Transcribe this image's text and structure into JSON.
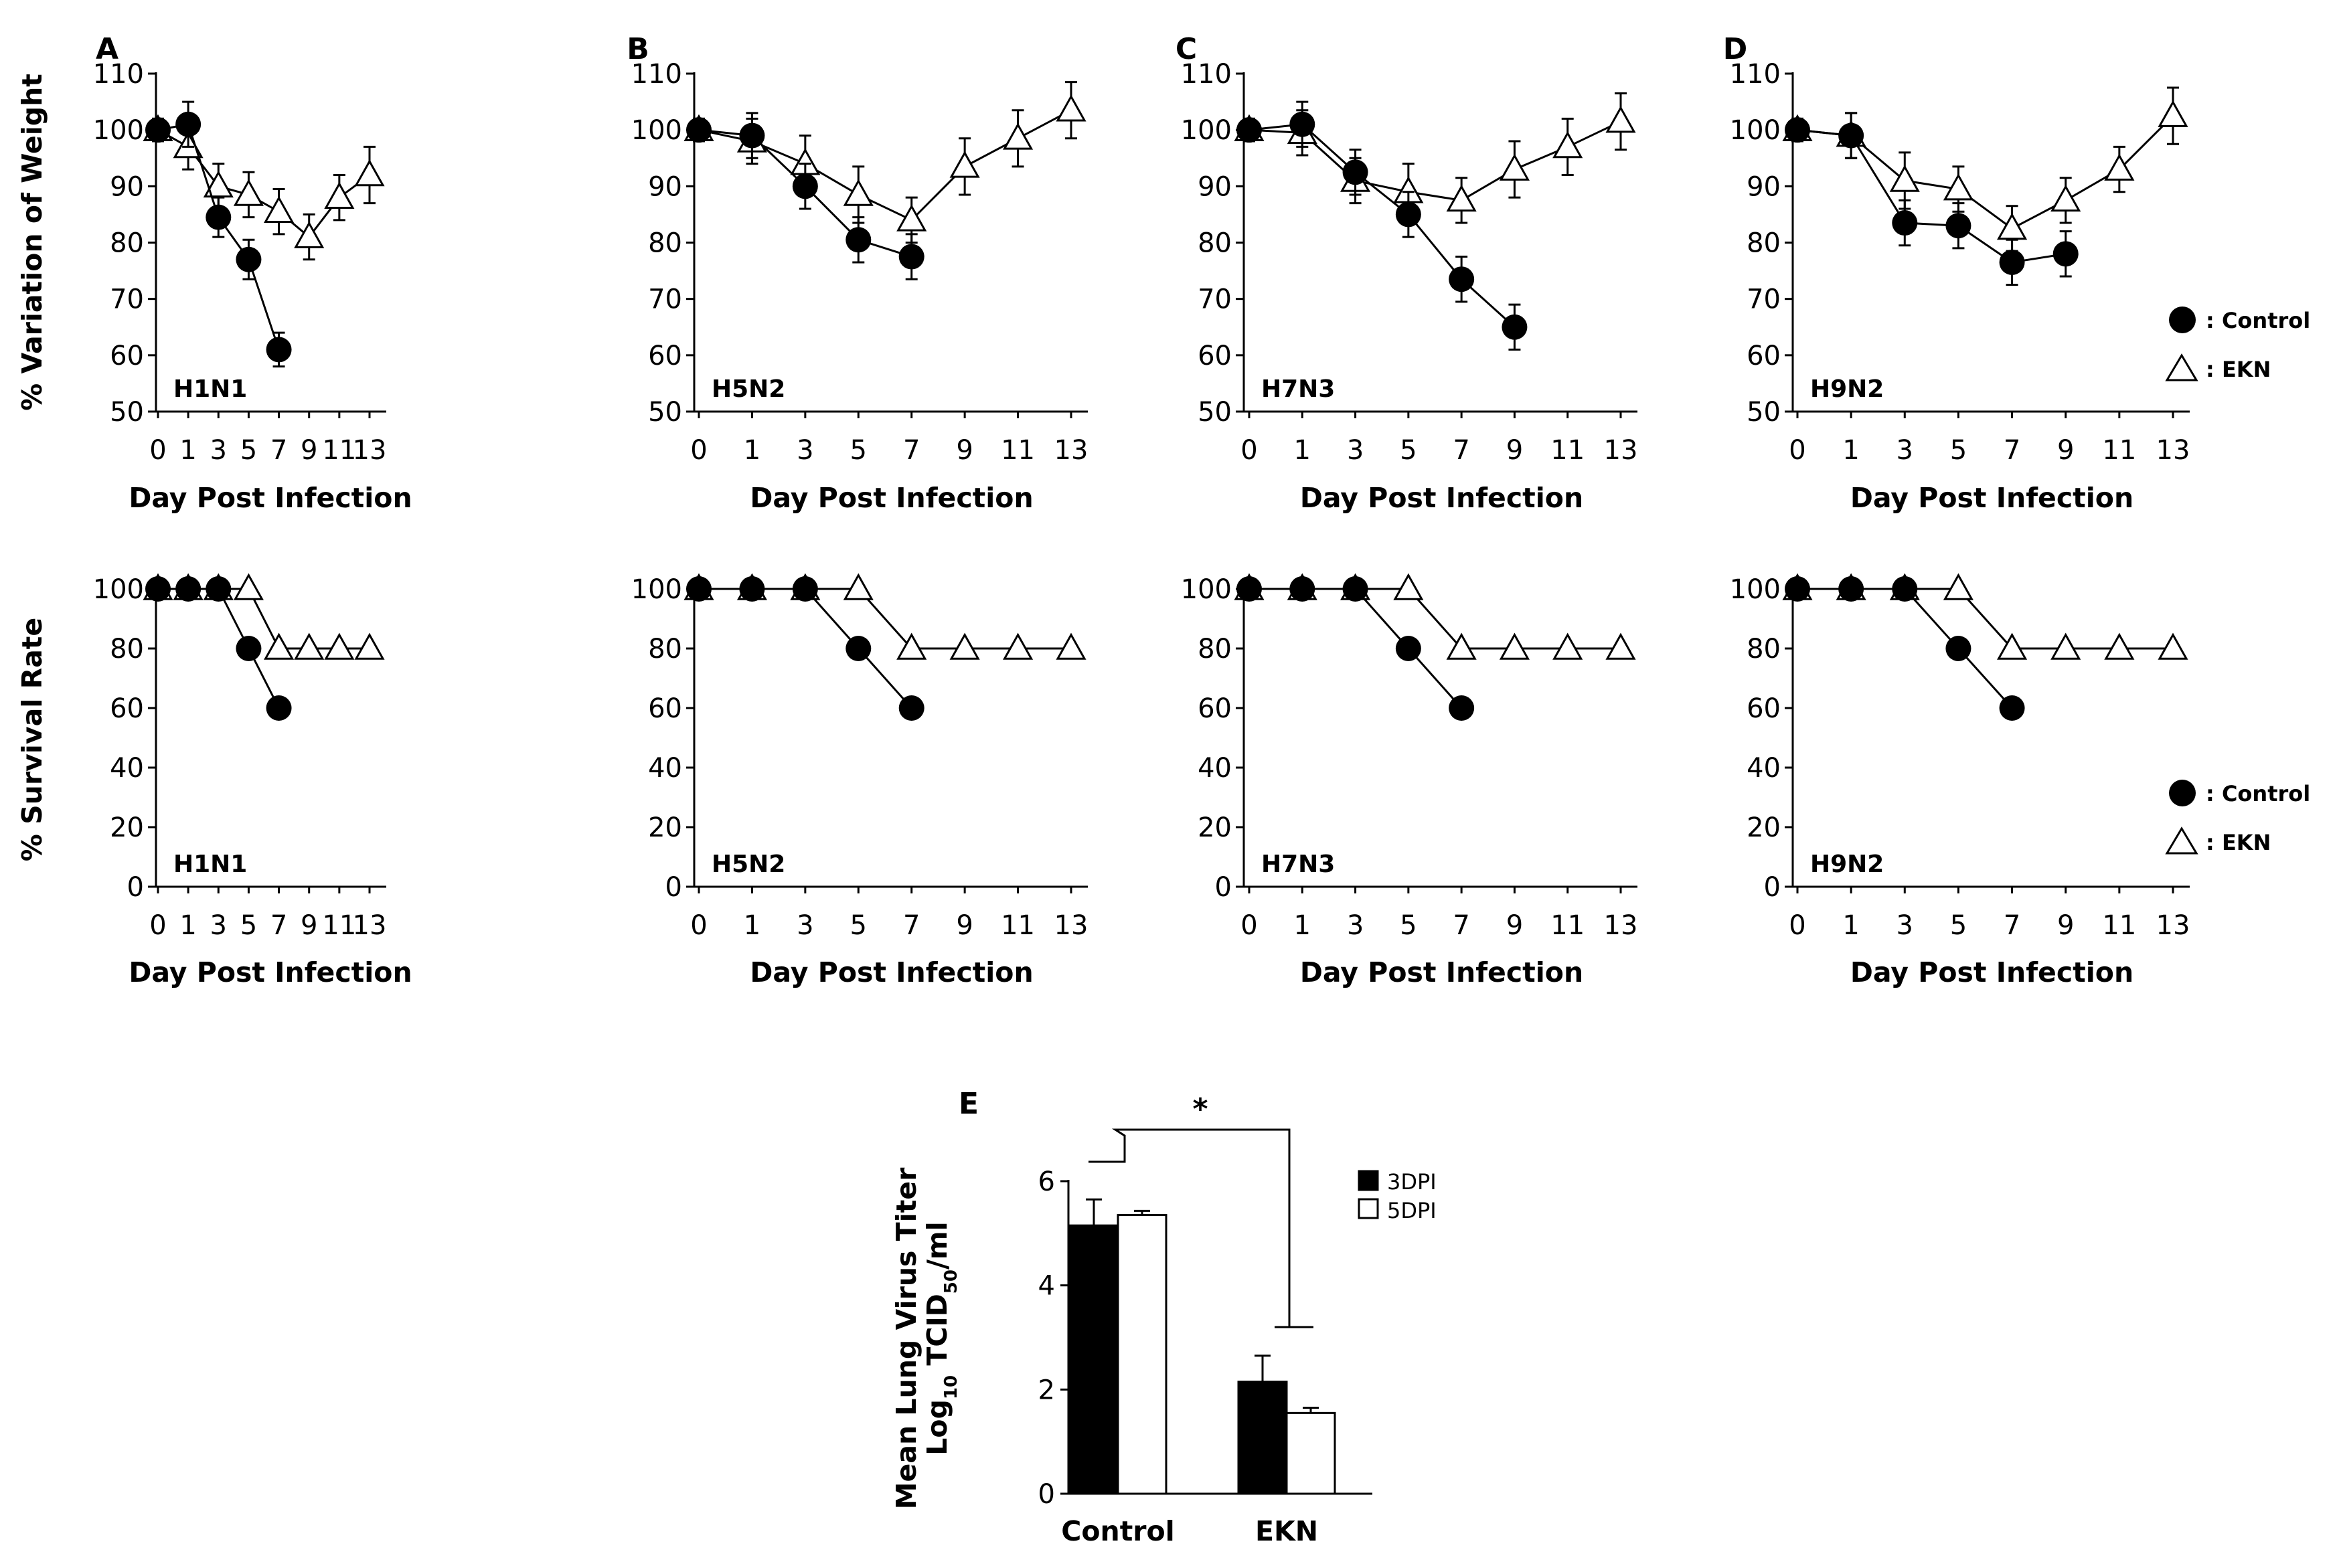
{
  "legend": {
    "control": ": Control",
    "ekn": ": EKN"
  },
  "chart_data": [
    {
      "id": "A",
      "type": "line",
      "panel": "A",
      "strain": "H1N1",
      "xlabel": "Day Post Infection",
      "ylabel": "% Variation of Weight",
      "ylim": [
        50,
        110
      ],
      "yticks": [
        50,
        60,
        70,
        80,
        90,
        100,
        110
      ],
      "xticks": [
        0,
        1,
        3,
        5,
        7,
        9,
        11,
        13
      ],
      "series": [
        {
          "name": "Control",
          "x": [
            0,
            1,
            3,
            5,
            7
          ],
          "y": [
            100,
            101,
            84.5,
            77,
            61
          ],
          "err": [
            2,
            4,
            3.5,
            3.5,
            3
          ]
        },
        {
          "name": "EKN",
          "x": [
            0,
            1,
            3,
            5,
            7,
            9,
            11,
            13
          ],
          "y": [
            100,
            97,
            90,
            88.5,
            85.5,
            81,
            88,
            92
          ],
          "err": [
            2,
            4,
            4,
            4,
            4,
            4,
            4,
            5
          ]
        }
      ]
    },
    {
      "id": "B",
      "type": "line",
      "panel": "B",
      "strain": "H5N2",
      "xlabel": "Day Post Infection",
      "ylabel": "",
      "ylim": [
        50,
        110
      ],
      "yticks": [
        50,
        60,
        70,
        80,
        90,
        100,
        110
      ],
      "xticks": [
        0,
        1,
        3,
        5,
        7,
        9,
        11,
        13
      ],
      "series": [
        {
          "name": "Control",
          "x": [
            0,
            1,
            3,
            5,
            7
          ],
          "y": [
            100,
            99,
            90,
            80.5,
            77.5
          ],
          "err": [
            2,
            4,
            4,
            4,
            4
          ]
        },
        {
          "name": "EKN",
          "x": [
            0,
            1,
            3,
            5,
            7,
            9,
            11,
            13
          ],
          "y": [
            100,
            98,
            94,
            88.5,
            84,
            93.5,
            98.5,
            103.5
          ],
          "err": [
            2,
            4,
            5,
            5,
            4,
            5,
            5,
            5
          ]
        }
      ]
    },
    {
      "id": "C",
      "type": "line",
      "panel": "C",
      "strain": "H7N3",
      "xlabel": "Day Post Infection",
      "ylabel": "",
      "ylim": [
        50,
        110
      ],
      "yticks": [
        50,
        60,
        70,
        80,
        90,
        100,
        110
      ],
      "xticks": [
        0,
        1,
        3,
        5,
        7,
        9,
        11,
        13
      ],
      "series": [
        {
          "name": "Control",
          "x": [
            0,
            1,
            3,
            5,
            7,
            9
          ],
          "y": [
            100,
            101,
            92.5,
            85,
            73.5,
            65
          ],
          "err": [
            2,
            4,
            4,
            4,
            4,
            4
          ]
        },
        {
          "name": "EKN",
          "x": [
            0,
            1,
            3,
            5,
            7,
            9,
            11,
            13
          ],
          "y": [
            100,
            99.5,
            91,
            89,
            87.5,
            93,
            97,
            101.5
          ],
          "err": [
            2,
            4,
            4,
            5,
            4,
            5,
            5,
            5
          ]
        }
      ]
    },
    {
      "id": "D",
      "type": "line",
      "panel": "D",
      "strain": "H9N2",
      "xlabel": "Day Post Infection",
      "ylabel": "",
      "ylim": [
        50,
        110
      ],
      "yticks": [
        50,
        60,
        70,
        80,
        90,
        100,
        110
      ],
      "xticks": [
        0,
        1,
        3,
        5,
        7,
        9,
        11,
        13
      ],
      "series": [
        {
          "name": "Control",
          "x": [
            0,
            1,
            3,
            5,
            7,
            9
          ],
          "y": [
            100,
            99,
            83.5,
            83,
            76.5,
            78
          ],
          "err": [
            2,
            4,
            4,
            4,
            4,
            4
          ]
        },
        {
          "name": "EKN",
          "x": [
            0,
            1,
            3,
            5,
            7,
            9,
            11,
            13
          ],
          "y": [
            100,
            99,
            91,
            89.5,
            82.5,
            87.5,
            93,
            102.5
          ],
          "err": [
            2,
            4,
            5,
            4,
            4,
            4,
            4,
            5
          ]
        }
      ]
    },
    {
      "id": "A2",
      "type": "line",
      "strain": "H1N1",
      "xlabel": "Day Post Infection",
      "ylabel": "% Survival  Rate",
      "ylim": [
        0,
        100
      ],
      "yticks": [
        0,
        20,
        40,
        60,
        80,
        100
      ],
      "xticks": [
        0,
        1,
        3,
        5,
        7,
        9,
        11,
        13
      ],
      "series": [
        {
          "name": "Control",
          "x": [
            0,
            1,
            3,
            5,
            7
          ],
          "y": [
            100,
            100,
            100,
            80,
            60
          ]
        },
        {
          "name": "EKN",
          "x": [
            0,
            1,
            3,
            5,
            7,
            9,
            11,
            13
          ],
          "y": [
            100,
            100,
            100,
            100,
            80,
            80,
            80,
            80
          ]
        }
      ]
    },
    {
      "id": "B2",
      "type": "line",
      "strain": "H5N2",
      "xlabel": "Day Post Infection",
      "ylabel": "",
      "ylim": [
        0,
        100
      ],
      "yticks": [
        0,
        20,
        40,
        60,
        80,
        100
      ],
      "xticks": [
        0,
        1,
        3,
        5,
        7,
        9,
        11,
        13
      ],
      "series": [
        {
          "name": "Control",
          "x": [
            0,
            1,
            3,
            5,
            7
          ],
          "y": [
            100,
            100,
            100,
            80,
            60
          ]
        },
        {
          "name": "EKN",
          "x": [
            0,
            1,
            3,
            5,
            7,
            9,
            11,
            13
          ],
          "y": [
            100,
            100,
            100,
            100,
            80,
            80,
            80,
            80
          ]
        }
      ]
    },
    {
      "id": "C2",
      "type": "line",
      "strain": "H7N3",
      "xlabel": "Day Post Infection",
      "ylabel": "",
      "ylim": [
        0,
        100
      ],
      "yticks": [
        0,
        20,
        40,
        60,
        80,
        100
      ],
      "xticks": [
        0,
        1,
        3,
        5,
        7,
        9,
        11,
        13
      ],
      "series": [
        {
          "name": "Control",
          "x": [
            0,
            1,
            3,
            5,
            7
          ],
          "y": [
            100,
            100,
            100,
            80,
            60
          ]
        },
        {
          "name": "EKN",
          "x": [
            0,
            1,
            3,
            5,
            7,
            9,
            11,
            13
          ],
          "y": [
            100,
            100,
            100,
            100,
            80,
            80,
            80,
            80
          ]
        }
      ]
    },
    {
      "id": "D2",
      "type": "line",
      "strain": "H9N2",
      "xlabel": "Day Post Infection",
      "ylabel": "",
      "ylim": [
        0,
        100
      ],
      "yticks": [
        0,
        20,
        40,
        60,
        80,
        100
      ],
      "xticks": [
        0,
        1,
        3,
        5,
        7,
        9,
        11,
        13
      ],
      "series": [
        {
          "name": "Control",
          "x": [
            0,
            1,
            3,
            5,
            7
          ],
          "y": [
            100,
            100,
            100,
            80,
            60
          ]
        },
        {
          "name": "EKN",
          "x": [
            0,
            1,
            3,
            5,
            7,
            9,
            11,
            13
          ],
          "y": [
            100,
            100,
            100,
            100,
            80,
            80,
            80,
            80
          ]
        }
      ]
    },
    {
      "id": "E",
      "type": "bar",
      "panel": "E",
      "categories": [
        "Control",
        "EKN"
      ],
      "ylabel_line1": "Mean Lung Virus Titer",
      "ylabel_line2_prefix": "Log",
      "ylabel_line2_sub1": "10",
      "ylabel_line2_mid": " TCID",
      "ylabel_line2_sub2": "50",
      "ylabel_line2_suffix": "/ml",
      "ylim": [
        0,
        6
      ],
      "yticks": [
        0,
        2,
        4,
        6
      ],
      "series": [
        {
          "name": "3DPI",
          "values": [
            5.15,
            2.15
          ],
          "err": [
            0.5,
            0.5
          ]
        },
        {
          "name": "5DPI",
          "values": [
            5.35,
            1.55
          ],
          "err": [
            0.08,
            0.1
          ]
        }
      ],
      "significance": "*"
    }
  ]
}
